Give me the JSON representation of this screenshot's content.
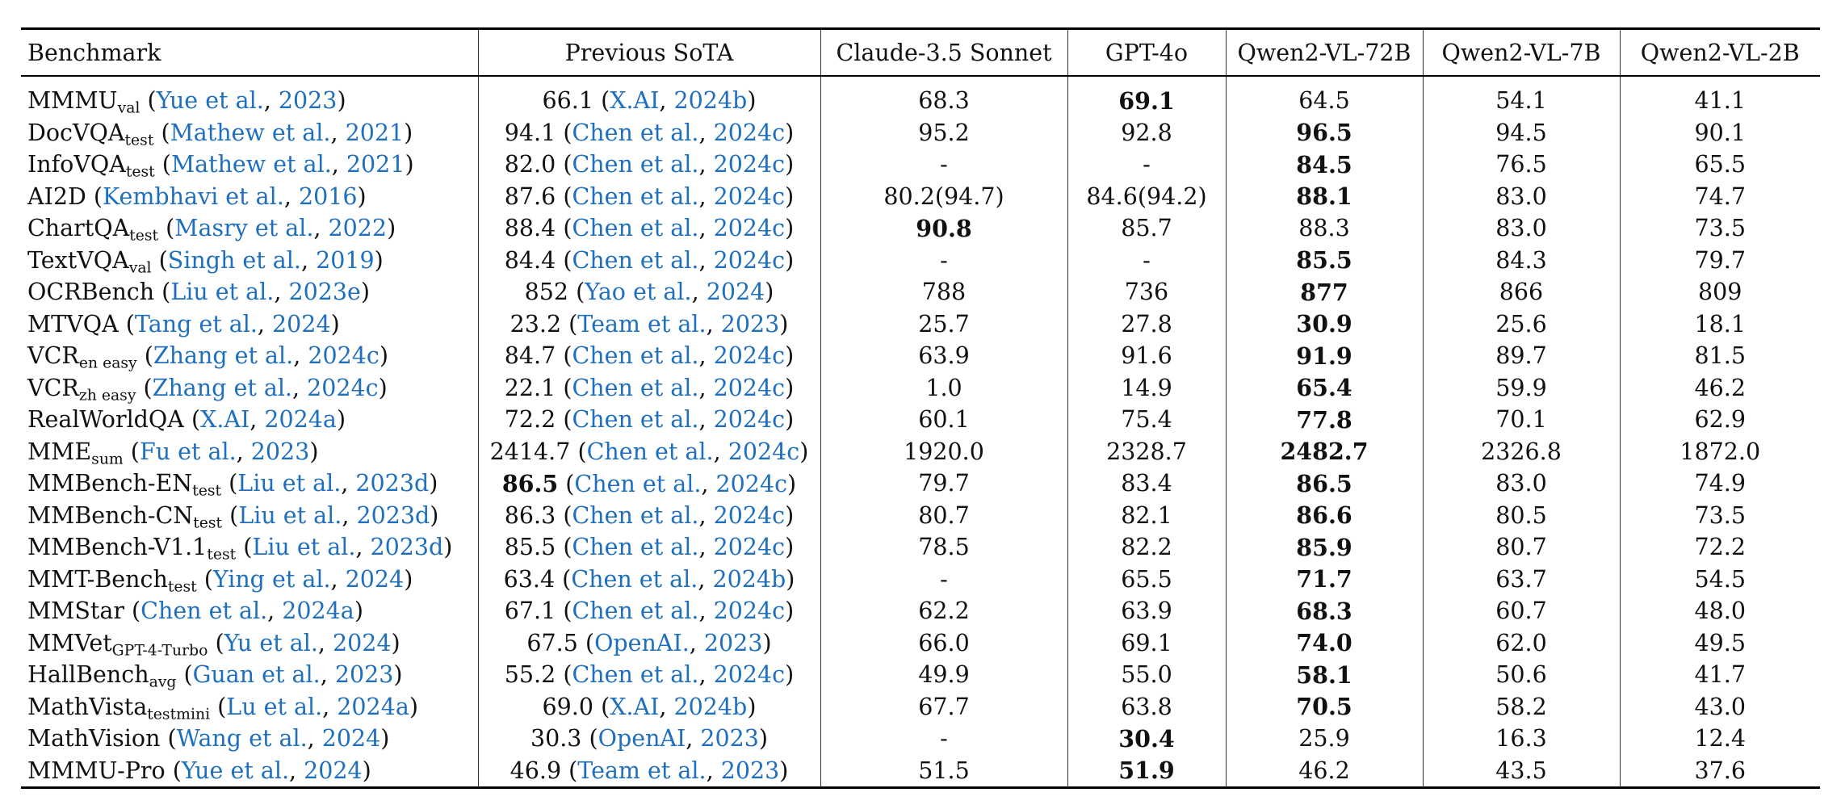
{
  "headers": [
    "Benchmark",
    "Previous SoTA",
    "Claude-3.5 Sonnet",
    "GPT-4o",
    "Qwen2-VL-72B",
    "Qwen2-VL-7B",
    "Qwen2-VL-2B"
  ],
  "rows": [
    {
      "name": "MMMU",
      "sub": "val",
      "cite_pre": " (",
      "cite_auth": "Yue et al.",
      "cite_mid": ", ",
      "cite_year": "2023",
      "cite_post": ")",
      "sota_val": "66.1",
      "sota_bold": false,
      "sota_pre": " (",
      "sota_auth": "X.AI",
      "sota_mid": ", ",
      "sota_year": "2024b",
      "sota_post": ")",
      "vals": [
        "68.3",
        "69.1",
        "64.5",
        "54.1",
        "41.1"
      ],
      "bold": [
        false,
        true,
        false,
        false,
        false
      ]
    },
    {
      "name": "DocVQA",
      "sub": "test",
      "cite_pre": " (",
      "cite_auth": "Mathew et al.",
      "cite_mid": ", ",
      "cite_year": "2021",
      "cite_post": ")",
      "sota_val": "94.1",
      "sota_bold": false,
      "sota_pre": " (",
      "sota_auth": "Chen et al.",
      "sota_mid": ", ",
      "sota_year": "2024c",
      "sota_post": ")",
      "vals": [
        "95.2",
        "92.8",
        "96.5",
        "94.5",
        "90.1"
      ],
      "bold": [
        false,
        false,
        true,
        false,
        false
      ]
    },
    {
      "name": "InfoVQA",
      "sub": "test",
      "cite_pre": " (",
      "cite_auth": "Mathew et al.",
      "cite_mid": ", ",
      "cite_year": "2021",
      "cite_post": ")",
      "sota_val": "82.0",
      "sota_bold": false,
      "sota_pre": " (",
      "sota_auth": "Chen et al.",
      "sota_mid": ", ",
      "sota_year": "2024c",
      "sota_post": ")",
      "vals": [
        "-",
        "-",
        "84.5",
        "76.5",
        "65.5"
      ],
      "bold": [
        false,
        false,
        true,
        false,
        false
      ]
    },
    {
      "name": "AI2D",
      "sub": "",
      "cite_pre": " (",
      "cite_auth": "Kembhavi et al.",
      "cite_mid": ", ",
      "cite_year": "2016",
      "cite_post": ")",
      "sota_val": "87.6",
      "sota_bold": false,
      "sota_pre": " (",
      "sota_auth": "Chen et al.",
      "sota_mid": ", ",
      "sota_year": "2024c",
      "sota_post": ")",
      "vals": [
        "80.2(94.7)",
        "84.6(94.2)",
        "88.1",
        "83.0",
        "74.7"
      ],
      "bold": [
        false,
        false,
        true,
        false,
        false
      ]
    },
    {
      "name": "ChartQA",
      "sub": "test",
      "cite_pre": " (",
      "cite_auth": "Masry et al.",
      "cite_mid": ", ",
      "cite_year": "2022",
      "cite_post": ")",
      "sota_val": "88.4",
      "sota_bold": false,
      "sota_pre": " (",
      "sota_auth": "Chen et al.",
      "sota_mid": ", ",
      "sota_year": "2024c",
      "sota_post": ")",
      "vals": [
        "90.8",
        "85.7",
        "88.3",
        "83.0",
        "73.5"
      ],
      "bold": [
        true,
        false,
        false,
        false,
        false
      ]
    },
    {
      "name": "TextVQA",
      "sub": "val",
      "cite_pre": " (",
      "cite_auth": "Singh et al.",
      "cite_mid": ", ",
      "cite_year": "2019",
      "cite_post": ")",
      "sota_val": "84.4",
      "sota_bold": false,
      "sota_pre": " (",
      "sota_auth": "Chen et al.",
      "sota_mid": ", ",
      "sota_year": "2024c",
      "sota_post": ")",
      "vals": [
        "-",
        "-",
        "85.5",
        "84.3",
        "79.7"
      ],
      "bold": [
        false,
        false,
        true,
        false,
        false
      ]
    },
    {
      "name": "OCRBench",
      "sub": "",
      "cite_pre": " (",
      "cite_auth": "Liu et al.",
      "cite_mid": ", ",
      "cite_year": "2023e",
      "cite_post": ")",
      "sota_val": "852",
      "sota_bold": false,
      "sota_pre": " (",
      "sota_auth": "Yao et al.",
      "sota_mid": ", ",
      "sota_year": "2024",
      "sota_post": ")",
      "vals": [
        "788",
        "736",
        "877",
        "866",
        "809"
      ],
      "bold": [
        false,
        false,
        true,
        false,
        false
      ]
    },
    {
      "name": "MTVQA",
      "sub": "",
      "cite_pre": " (",
      "cite_auth": "Tang et al.",
      "cite_mid": ", ",
      "cite_year": "2024",
      "cite_post": ")",
      "sota_val": "23.2",
      "sota_bold": false,
      "sota_pre": " (",
      "sota_auth": "Team et al.",
      "sota_mid": ", ",
      "sota_year": "2023",
      "sota_post": ")",
      "vals": [
        "25.7",
        "27.8",
        "30.9",
        "25.6",
        "18.1"
      ],
      "bold": [
        false,
        false,
        true,
        false,
        false
      ]
    },
    {
      "name": "VCR",
      "sub": "en easy",
      "cite_pre": " (",
      "cite_auth": "Zhang et al.",
      "cite_mid": ", ",
      "cite_year": "2024c",
      "cite_post": ")",
      "sota_val": "84.7",
      "sota_bold": false,
      "sota_pre": " (",
      "sota_auth": "Chen et al.",
      "sota_mid": ", ",
      "sota_year": "2024c",
      "sota_post": ")",
      "vals": [
        "63.9",
        "91.6",
        "91.9",
        "89.7",
        "81.5"
      ],
      "bold": [
        false,
        false,
        true,
        false,
        false
      ]
    },
    {
      "name": "VCR",
      "sub": "zh easy",
      "cite_pre": " (",
      "cite_auth": "Zhang et al.",
      "cite_mid": ", ",
      "cite_year": "2024c",
      "cite_post": ")",
      "sota_val": "22.1",
      "sota_bold": false,
      "sota_pre": " (",
      "sota_auth": "Chen et al.",
      "sota_mid": ", ",
      "sota_year": "2024c",
      "sota_post": ")",
      "vals": [
        "1.0",
        "14.9",
        "65.4",
        "59.9",
        "46.2"
      ],
      "bold": [
        false,
        false,
        true,
        false,
        false
      ]
    },
    {
      "name": "RealWorldQA",
      "sub": "",
      "cite_pre": " (",
      "cite_auth": "X.AI",
      "cite_mid": ", ",
      "cite_year": "2024a",
      "cite_post": ")",
      "sota_val": "72.2",
      "sota_bold": false,
      "sota_pre": " (",
      "sota_auth": "Chen et al.",
      "sota_mid": ", ",
      "sota_year": "2024c",
      "sota_post": ")",
      "vals": [
        "60.1",
        "75.4",
        "77.8",
        "70.1",
        "62.9"
      ],
      "bold": [
        false,
        false,
        true,
        false,
        false
      ]
    },
    {
      "name": "MME",
      "sub": "sum",
      "cite_pre": " (",
      "cite_auth": "Fu et al.",
      "cite_mid": ", ",
      "cite_year": "2023",
      "cite_post": ")",
      "sota_val": "2414.7",
      "sota_bold": false,
      "sota_pre": " (",
      "sota_auth": "Chen et al.",
      "sota_mid": ", ",
      "sota_year": "2024c",
      "sota_post": ")",
      "vals": [
        "1920.0",
        "2328.7",
        "2482.7",
        "2326.8",
        "1872.0"
      ],
      "bold": [
        false,
        false,
        true,
        false,
        false
      ]
    },
    {
      "name": "MMBench-EN",
      "sub": "test",
      "cite_pre": " (",
      "cite_auth": "Liu et al.",
      "cite_mid": ", ",
      "cite_year": "2023d",
      "cite_post": ")",
      "sota_val": "86.5",
      "sota_bold": true,
      "sota_pre": " (",
      "sota_auth": "Chen et al.",
      "sota_mid": ", ",
      "sota_year": "2024c",
      "sota_post": ")",
      "vals": [
        "79.7",
        "83.4",
        "86.5",
        "83.0",
        "74.9"
      ],
      "bold": [
        false,
        false,
        true,
        false,
        false
      ]
    },
    {
      "name": "MMBench-CN",
      "sub": "test",
      "cite_pre": " (",
      "cite_auth": "Liu et al.",
      "cite_mid": ", ",
      "cite_year": "2023d",
      "cite_post": ")",
      "sota_val": "86.3",
      "sota_bold": false,
      "sota_pre": " (",
      "sota_auth": "Chen et al.",
      "sota_mid": ", ",
      "sota_year": "2024c",
      "sota_post": ")",
      "vals": [
        "80.7",
        "82.1",
        "86.6",
        "80.5",
        "73.5"
      ],
      "bold": [
        false,
        false,
        true,
        false,
        false
      ]
    },
    {
      "name": "MMBench-V1.1",
      "sub": "test",
      "cite_pre": " (",
      "cite_auth": "Liu et al.",
      "cite_mid": ", ",
      "cite_year": "2023d",
      "cite_post": ")",
      "sota_val": "85.5",
      "sota_bold": false,
      "sota_pre": " (",
      "sota_auth": "Chen et al.",
      "sota_mid": ", ",
      "sota_year": "2024c",
      "sota_post": ")",
      "vals": [
        "78.5",
        "82.2",
        "85.9",
        "80.7",
        "72.2"
      ],
      "bold": [
        false,
        false,
        true,
        false,
        false
      ]
    },
    {
      "name": "MMT-Bench",
      "sub": "test",
      "cite_pre": " (",
      "cite_auth": "Ying et al.",
      "cite_mid": ", ",
      "cite_year": "2024",
      "cite_post": ")",
      "sota_val": "63.4",
      "sota_bold": false,
      "sota_pre": " (",
      "sota_auth": "Chen et al.",
      "sota_mid": ", ",
      "sota_year": "2024b",
      "sota_post": ")",
      "vals": [
        "-",
        "65.5",
        "71.7",
        "63.7",
        "54.5"
      ],
      "bold": [
        false,
        false,
        true,
        false,
        false
      ]
    },
    {
      "name": "MMStar",
      "sub": "",
      "cite_pre": " (",
      "cite_auth": "Chen et al.",
      "cite_mid": ", ",
      "cite_year": "2024a",
      "cite_post": ")",
      "sota_val": "67.1",
      "sota_bold": false,
      "sota_pre": " (",
      "sota_auth": "Chen et al.",
      "sota_mid": ", ",
      "sota_year": "2024c",
      "sota_post": ")",
      "vals": [
        "62.2",
        "63.9",
        "68.3",
        "60.7",
        "48.0"
      ],
      "bold": [
        false,
        false,
        true,
        false,
        false
      ]
    },
    {
      "name": "MMVet",
      "sub": "GPT-4-Turbo",
      "cite_pre": " (",
      "cite_auth": "Yu et al.",
      "cite_mid": ", ",
      "cite_year": "2024",
      "cite_post": ")",
      "sota_val": "67.5",
      "sota_bold": false,
      "sota_pre": " (",
      "sota_auth": "OpenAI.",
      "sota_mid": ", ",
      "sota_year": "2023",
      "sota_post": ")",
      "vals": [
        "66.0",
        "69.1",
        "74.0",
        "62.0",
        "49.5"
      ],
      "bold": [
        false,
        false,
        true,
        false,
        false
      ]
    },
    {
      "name": "HallBench",
      "sub": "avg",
      "cite_pre": " (",
      "cite_auth": "Guan et al.",
      "cite_mid": ", ",
      "cite_year": "2023",
      "cite_post": ")",
      "sota_val": "55.2",
      "sota_bold": false,
      "sota_pre": " (",
      "sota_auth": "Chen et al.",
      "sota_mid": ", ",
      "sota_year": "2024c",
      "sota_post": ")",
      "vals": [
        "49.9",
        "55.0",
        "58.1",
        "50.6",
        "41.7"
      ],
      "bold": [
        false,
        false,
        true,
        false,
        false
      ]
    },
    {
      "name": "MathVista",
      "sub": "testmini",
      "cite_pre": " (",
      "cite_auth": "Lu et al.",
      "cite_mid": ", ",
      "cite_year": "2024a",
      "cite_post": ")",
      "sota_val": "69.0",
      "sota_bold": false,
      "sota_pre": " (",
      "sota_auth": "X.AI",
      "sota_mid": ", ",
      "sota_year": "2024b",
      "sota_post": ")",
      "vals": [
        "67.7",
        "63.8",
        "70.5",
        "58.2",
        "43.0"
      ],
      "bold": [
        false,
        false,
        true,
        false,
        false
      ]
    },
    {
      "name": "MathVision",
      "sub": "",
      "cite_pre": " (",
      "cite_auth": "Wang et al.",
      "cite_mid": ", ",
      "cite_year": "2024",
      "cite_post": ")",
      "sota_val": "30.3",
      "sota_bold": false,
      "sota_pre": " (",
      "sota_auth": "OpenAI",
      "sota_mid": ", ",
      "sota_year": "2023",
      "sota_post": ")",
      "vals": [
        "-",
        "30.4",
        "25.9",
        "16.3",
        "12.4"
      ],
      "bold": [
        false,
        true,
        false,
        false,
        false
      ]
    },
    {
      "name": "MMMU-Pro",
      "sub": "",
      "cite_pre": " (",
      "cite_auth": "Yue et al.",
      "cite_mid": ", ",
      "cite_year": "2024",
      "cite_post": ")",
      "sota_val": "46.9",
      "sota_bold": false,
      "sota_pre": " (",
      "sota_auth": "Team et al.",
      "sota_mid": ", ",
      "sota_year": "2023",
      "sota_post": ")",
      "vals": [
        "51.5",
        "51.9",
        "46.2",
        "43.5",
        "37.6"
      ],
      "bold": [
        false,
        true,
        false,
        false,
        false
      ]
    }
  ],
  "colors": {
    "citation": "#1f6fbf",
    "text": "#111111",
    "rule": "#000000"
  }
}
